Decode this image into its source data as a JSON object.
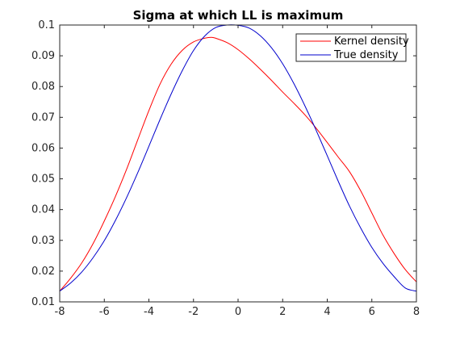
{
  "chart_data": {
    "type": "line",
    "title": "Sigma at which LL is maximum",
    "xlabel": "",
    "ylabel": "",
    "xlim": [
      -8,
      8
    ],
    "ylim": [
      0.01,
      0.1
    ],
    "xticks": [
      -8,
      -6,
      -4,
      -2,
      0,
      2,
      4,
      6,
      8
    ],
    "xtick_labels": [
      "-8",
      "-6",
      "-4",
      "-2",
      "0",
      "2",
      "4",
      "6",
      "8"
    ],
    "yticks": [
      0.01,
      0.02,
      0.03,
      0.04,
      0.05,
      0.06,
      0.07,
      0.08,
      0.09,
      0.1
    ],
    "ytick_labels": [
      "0.01",
      "0.02",
      "0.03",
      "0.04",
      "0.05",
      "0.06",
      "0.07",
      "0.08",
      "0.09",
      "0.1"
    ],
    "grid": false,
    "legend_position": "top-right",
    "series": [
      {
        "name": "Kernel density",
        "color": "#ff0000",
        "x": [
          -8,
          -7.5,
          -7,
          -6.5,
          -6,
          -5.5,
          -5,
          -4.5,
          -4,
          -3.5,
          -3,
          -2.5,
          -2,
          -1.5,
          -1.2,
          -1,
          -0.5,
          0,
          0.5,
          1,
          1.5,
          2,
          2.5,
          3,
          3.5,
          4,
          4.5,
          5,
          5.5,
          6,
          6.5,
          7,
          7.5,
          8
        ],
        "y": [
          0.0135,
          0.0178,
          0.0228,
          0.029,
          0.0363,
          0.0443,
          0.0531,
          0.0627,
          0.0722,
          0.0808,
          0.0873,
          0.0918,
          0.0945,
          0.0957,
          0.096,
          0.0957,
          0.0943,
          0.092,
          0.089,
          0.0856,
          0.082,
          0.0782,
          0.0746,
          0.0708,
          0.0665,
          0.0618,
          0.057,
          0.0523,
          0.0461,
          0.0389,
          0.0317,
          0.0257,
          0.0205,
          0.0165
        ]
      },
      {
        "name": "True density",
        "color": "#0000cc",
        "x": [
          -8,
          -7.5,
          -7,
          -6.5,
          -6,
          -5.5,
          -5,
          -4.5,
          -4,
          -3.5,
          -3,
          -2.5,
          -2,
          -1.5,
          -1,
          -0.5,
          0,
          0.5,
          1,
          1.5,
          2,
          2.5,
          3,
          3.5,
          4,
          4.5,
          5,
          5.5,
          6,
          6.5,
          7,
          7.5,
          8
        ],
        "y": [
          0.0135,
          0.0162,
          0.0198,
          0.0244,
          0.0299,
          0.0365,
          0.0439,
          0.052,
          0.0606,
          0.0693,
          0.0776,
          0.0852,
          0.0917,
          0.0964,
          0.0992,
          0.1,
          0.0999,
          0.099,
          0.0965,
          0.0926,
          0.0874,
          0.081,
          0.0737,
          0.0658,
          0.0575,
          0.0491,
          0.0411,
          0.034,
          0.0277,
          0.0225,
          0.0182,
          0.0145,
          0.0135
        ]
      }
    ]
  }
}
